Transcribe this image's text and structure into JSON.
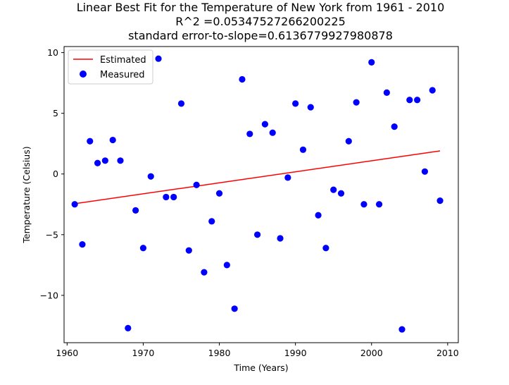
{
  "chart_data": {
    "type": "scatter",
    "title_lines": [
      "Linear Best Fit for the Temperature of New York from 1961 - 2010",
      "R^2 =0.05347527266200225",
      "standard error-to-slope=0.6136779927980878"
    ],
    "xlabel": "Time (Years)",
    "ylabel": "Temperature (Celsius)",
    "xlim": [
      1959.6,
      2011.4
    ],
    "ylim": [
      -13.9,
      10.5
    ],
    "xticks": [
      1960,
      1970,
      1980,
      1990,
      2000,
      2010
    ],
    "yticks": [
      -10,
      -5,
      0,
      5,
      10
    ],
    "xtick_labels": [
      "1960",
      "1970",
      "1980",
      "1990",
      "2000",
      "2010"
    ],
    "ytick_labels": [
      "−10",
      "−5",
      "0",
      "5",
      "10"
    ],
    "grid": false,
    "legend_position": "top-left",
    "series": [
      {
        "name": "Estimated",
        "kind": "line",
        "color": "#ff0000",
        "x": [
          1961,
          2009
        ],
        "y": [
          -2.45,
          1.9
        ]
      },
      {
        "name": "Measured",
        "kind": "scatter",
        "color": "#0000ff",
        "x": [
          1961,
          1962,
          1963,
          1964,
          1965,
          1966,
          1967,
          1968,
          1969,
          1970,
          1971,
          1972,
          1973,
          1974,
          1975,
          1976,
          1977,
          1978,
          1979,
          1980,
          1981,
          1982,
          1983,
          1984,
          1985,
          1986,
          1987,
          1988,
          1989,
          1990,
          1991,
          1992,
          1993,
          1994,
          1995,
          1996,
          1997,
          1998,
          1999,
          2000,
          2001,
          2002,
          2003,
          2004,
          2005,
          2006,
          2007,
          2008,
          2009
        ],
        "y": [
          -2.5,
          -5.8,
          2.7,
          0.9,
          1.1,
          2.8,
          1.1,
          -12.7,
          -3.0,
          -6.1,
          -0.2,
          9.5,
          -1.9,
          -1.9,
          5.8,
          -6.3,
          -0.9,
          -8.1,
          -3.9,
          -1.6,
          -7.5,
          -11.1,
          7.8,
          3.3,
          -5.0,
          4.1,
          3.4,
          -5.3,
          -0.3,
          5.8,
          2.0,
          5.5,
          -3.4,
          -6.1,
          -1.3,
          -1.6,
          2.7,
          5.9,
          -2.5,
          9.2,
          -2.5,
          6.7,
          3.9,
          -12.8,
          6.1,
          6.1,
          0.2,
          6.9,
          -2.2
        ]
      }
    ]
  }
}
